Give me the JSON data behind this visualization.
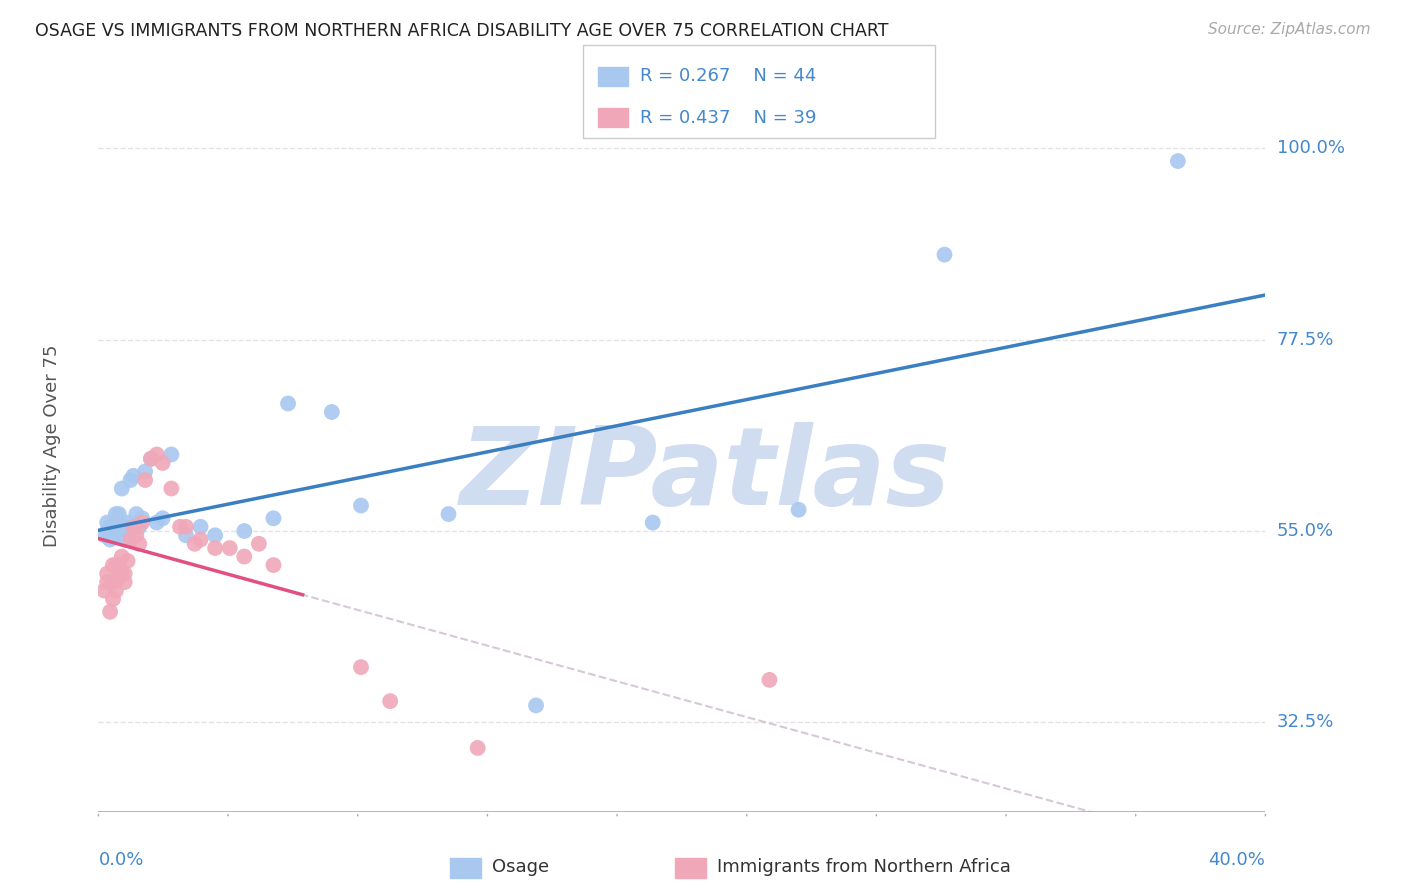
{
  "title": "OSAGE VS IMMIGRANTS FROM NORTHERN AFRICA DISABILITY AGE OVER 75 CORRELATION CHART",
  "source": "Source: ZipAtlas.com",
  "ylabel": "Disability Age Over 75",
  "ytick_labels": [
    "100.0%",
    "77.5%",
    "55.0%",
    "32.5%"
  ],
  "ytick_values": [
    1.0,
    0.775,
    0.55,
    0.325
  ],
  "xlim": [
    0.0,
    0.4
  ],
  "ylim": [
    0.22,
    1.08
  ],
  "legend_bottom_blue": "Osage",
  "legend_bottom_pink": "Immigrants from Northern Africa",
  "blue_scatter_color": "#a8c8f0",
  "pink_scatter_color": "#f0a8b8",
  "blue_line_color": "#3a7fc1",
  "pink_line_color": "#e05080",
  "diag_color": "#ccbbcc",
  "watermark": "ZIPatlas",
  "watermark_color": "#d0ddf0",
  "background_color": "#ffffff",
  "grid_color": "#dddddd",
  "title_color": "#222222",
  "source_color": "#aaaaaa",
  "axis_label_color": "#555555",
  "tick_label_color": "#4488cc",
  "osage_x": [
    0.002,
    0.003,
    0.003,
    0.004,
    0.004,
    0.005,
    0.005,
    0.005,
    0.006,
    0.006,
    0.006,
    0.007,
    0.007,
    0.007,
    0.008,
    0.008,
    0.008,
    0.009,
    0.009,
    0.01,
    0.011,
    0.012,
    0.013,
    0.014,
    0.015,
    0.016,
    0.018,
    0.02,
    0.022,
    0.025,
    0.03,
    0.035,
    0.04,
    0.05,
    0.06,
    0.065,
    0.08,
    0.09,
    0.12,
    0.15,
    0.19,
    0.24,
    0.29,
    0.37
  ],
  "osage_y": [
    0.545,
    0.56,
    0.55,
    0.555,
    0.54,
    0.55,
    0.555,
    0.545,
    0.555,
    0.545,
    0.57,
    0.56,
    0.57,
    0.555,
    0.555,
    0.6,
    0.55,
    0.555,
    0.54,
    0.56,
    0.61,
    0.615,
    0.57,
    0.555,
    0.565,
    0.62,
    0.635,
    0.56,
    0.565,
    0.64,
    0.545,
    0.555,
    0.545,
    0.55,
    0.565,
    0.7,
    0.69,
    0.58,
    0.57,
    0.345,
    0.56,
    0.575,
    0.875,
    0.985
  ],
  "immigrants_x": [
    0.002,
    0.003,
    0.003,
    0.004,
    0.005,
    0.005,
    0.005,
    0.006,
    0.006,
    0.007,
    0.007,
    0.008,
    0.008,
    0.009,
    0.009,
    0.01,
    0.011,
    0.012,
    0.013,
    0.014,
    0.015,
    0.016,
    0.018,
    0.02,
    0.022,
    0.025,
    0.028,
    0.03,
    0.033,
    0.035,
    0.04,
    0.045,
    0.05,
    0.055,
    0.06,
    0.09,
    0.1,
    0.13,
    0.23
  ],
  "immigrants_y": [
    0.48,
    0.49,
    0.5,
    0.455,
    0.47,
    0.49,
    0.51,
    0.48,
    0.51,
    0.495,
    0.51,
    0.52,
    0.5,
    0.49,
    0.5,
    0.515,
    0.54,
    0.555,
    0.545,
    0.535,
    0.56,
    0.61,
    0.635,
    0.64,
    0.63,
    0.6,
    0.555,
    0.555,
    0.535,
    0.54,
    0.53,
    0.53,
    0.52,
    0.535,
    0.51,
    0.39,
    0.35,
    0.295,
    0.375
  ]
}
